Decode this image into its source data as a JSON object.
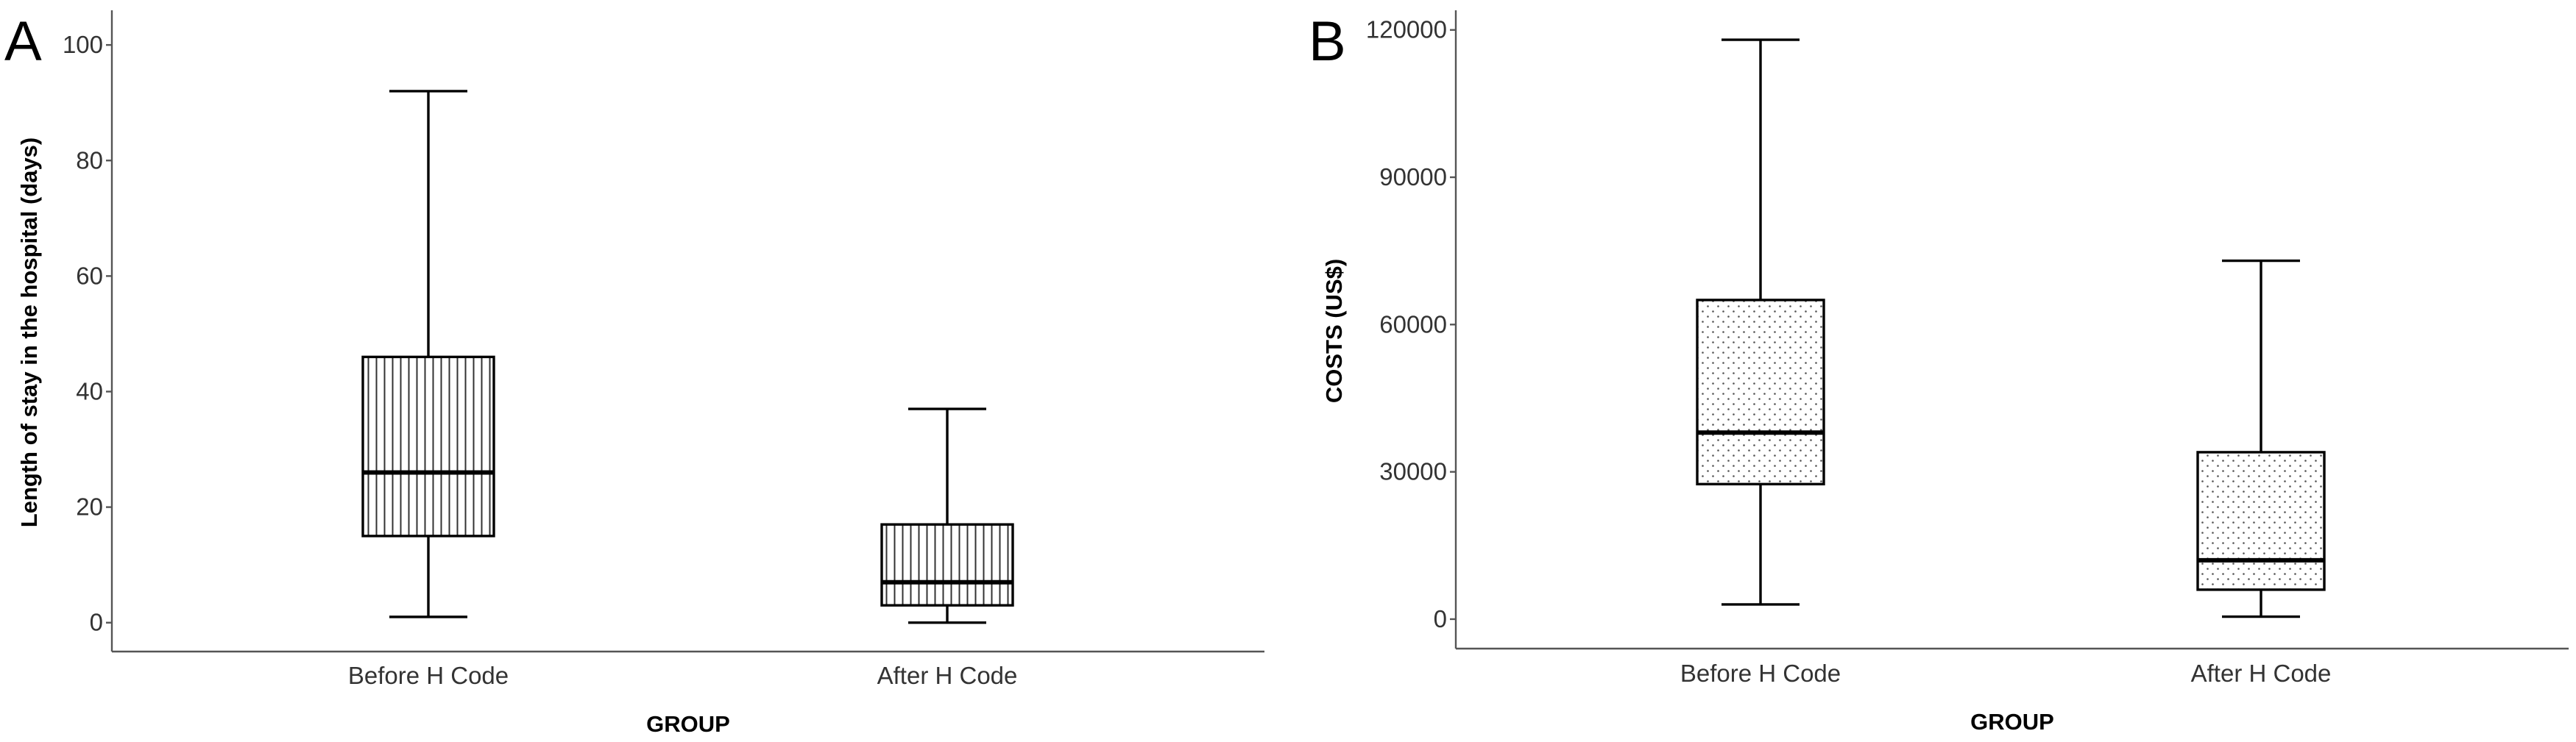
{
  "chart_data": [
    {
      "type": "boxplot",
      "panel_label": "A",
      "xlabel": "GROUP",
      "ylabel": "Length of stay in the hospital (days)",
      "ylim": [
        -5,
        106
      ],
      "yticks": [
        0,
        20,
        40,
        60,
        80,
        100
      ],
      "categories": [
        "Before H Code",
        "After H Code"
      ],
      "fill_pattern": "vertical-lines",
      "boxes": [
        {
          "category": "Before H Code",
          "min": 1,
          "q1": 15,
          "median": 26,
          "q3": 46,
          "max": 92
        },
        {
          "category": "After H Code",
          "min": 0,
          "q1": 3,
          "median": 7,
          "q3": 17,
          "max": 37
        }
      ]
    },
    {
      "type": "boxplot",
      "panel_label": "B",
      "xlabel": "GROUP",
      "ylabel": "COSTS (US$)",
      "ylim": [
        -6000,
        124000
      ],
      "yticks": [
        0,
        30000,
        60000,
        90000,
        120000
      ],
      "categories": [
        "Before H Code",
        "After H Code"
      ],
      "fill_pattern": "dots",
      "boxes": [
        {
          "category": "Before H Code",
          "min": 3000,
          "q1": 27500,
          "median": 38000,
          "q3": 65000,
          "max": 118000
        },
        {
          "category": "After H Code",
          "min": 500,
          "q1": 6000,
          "median": 12000,
          "q3": 34000,
          "max": 73000
        }
      ]
    }
  ]
}
